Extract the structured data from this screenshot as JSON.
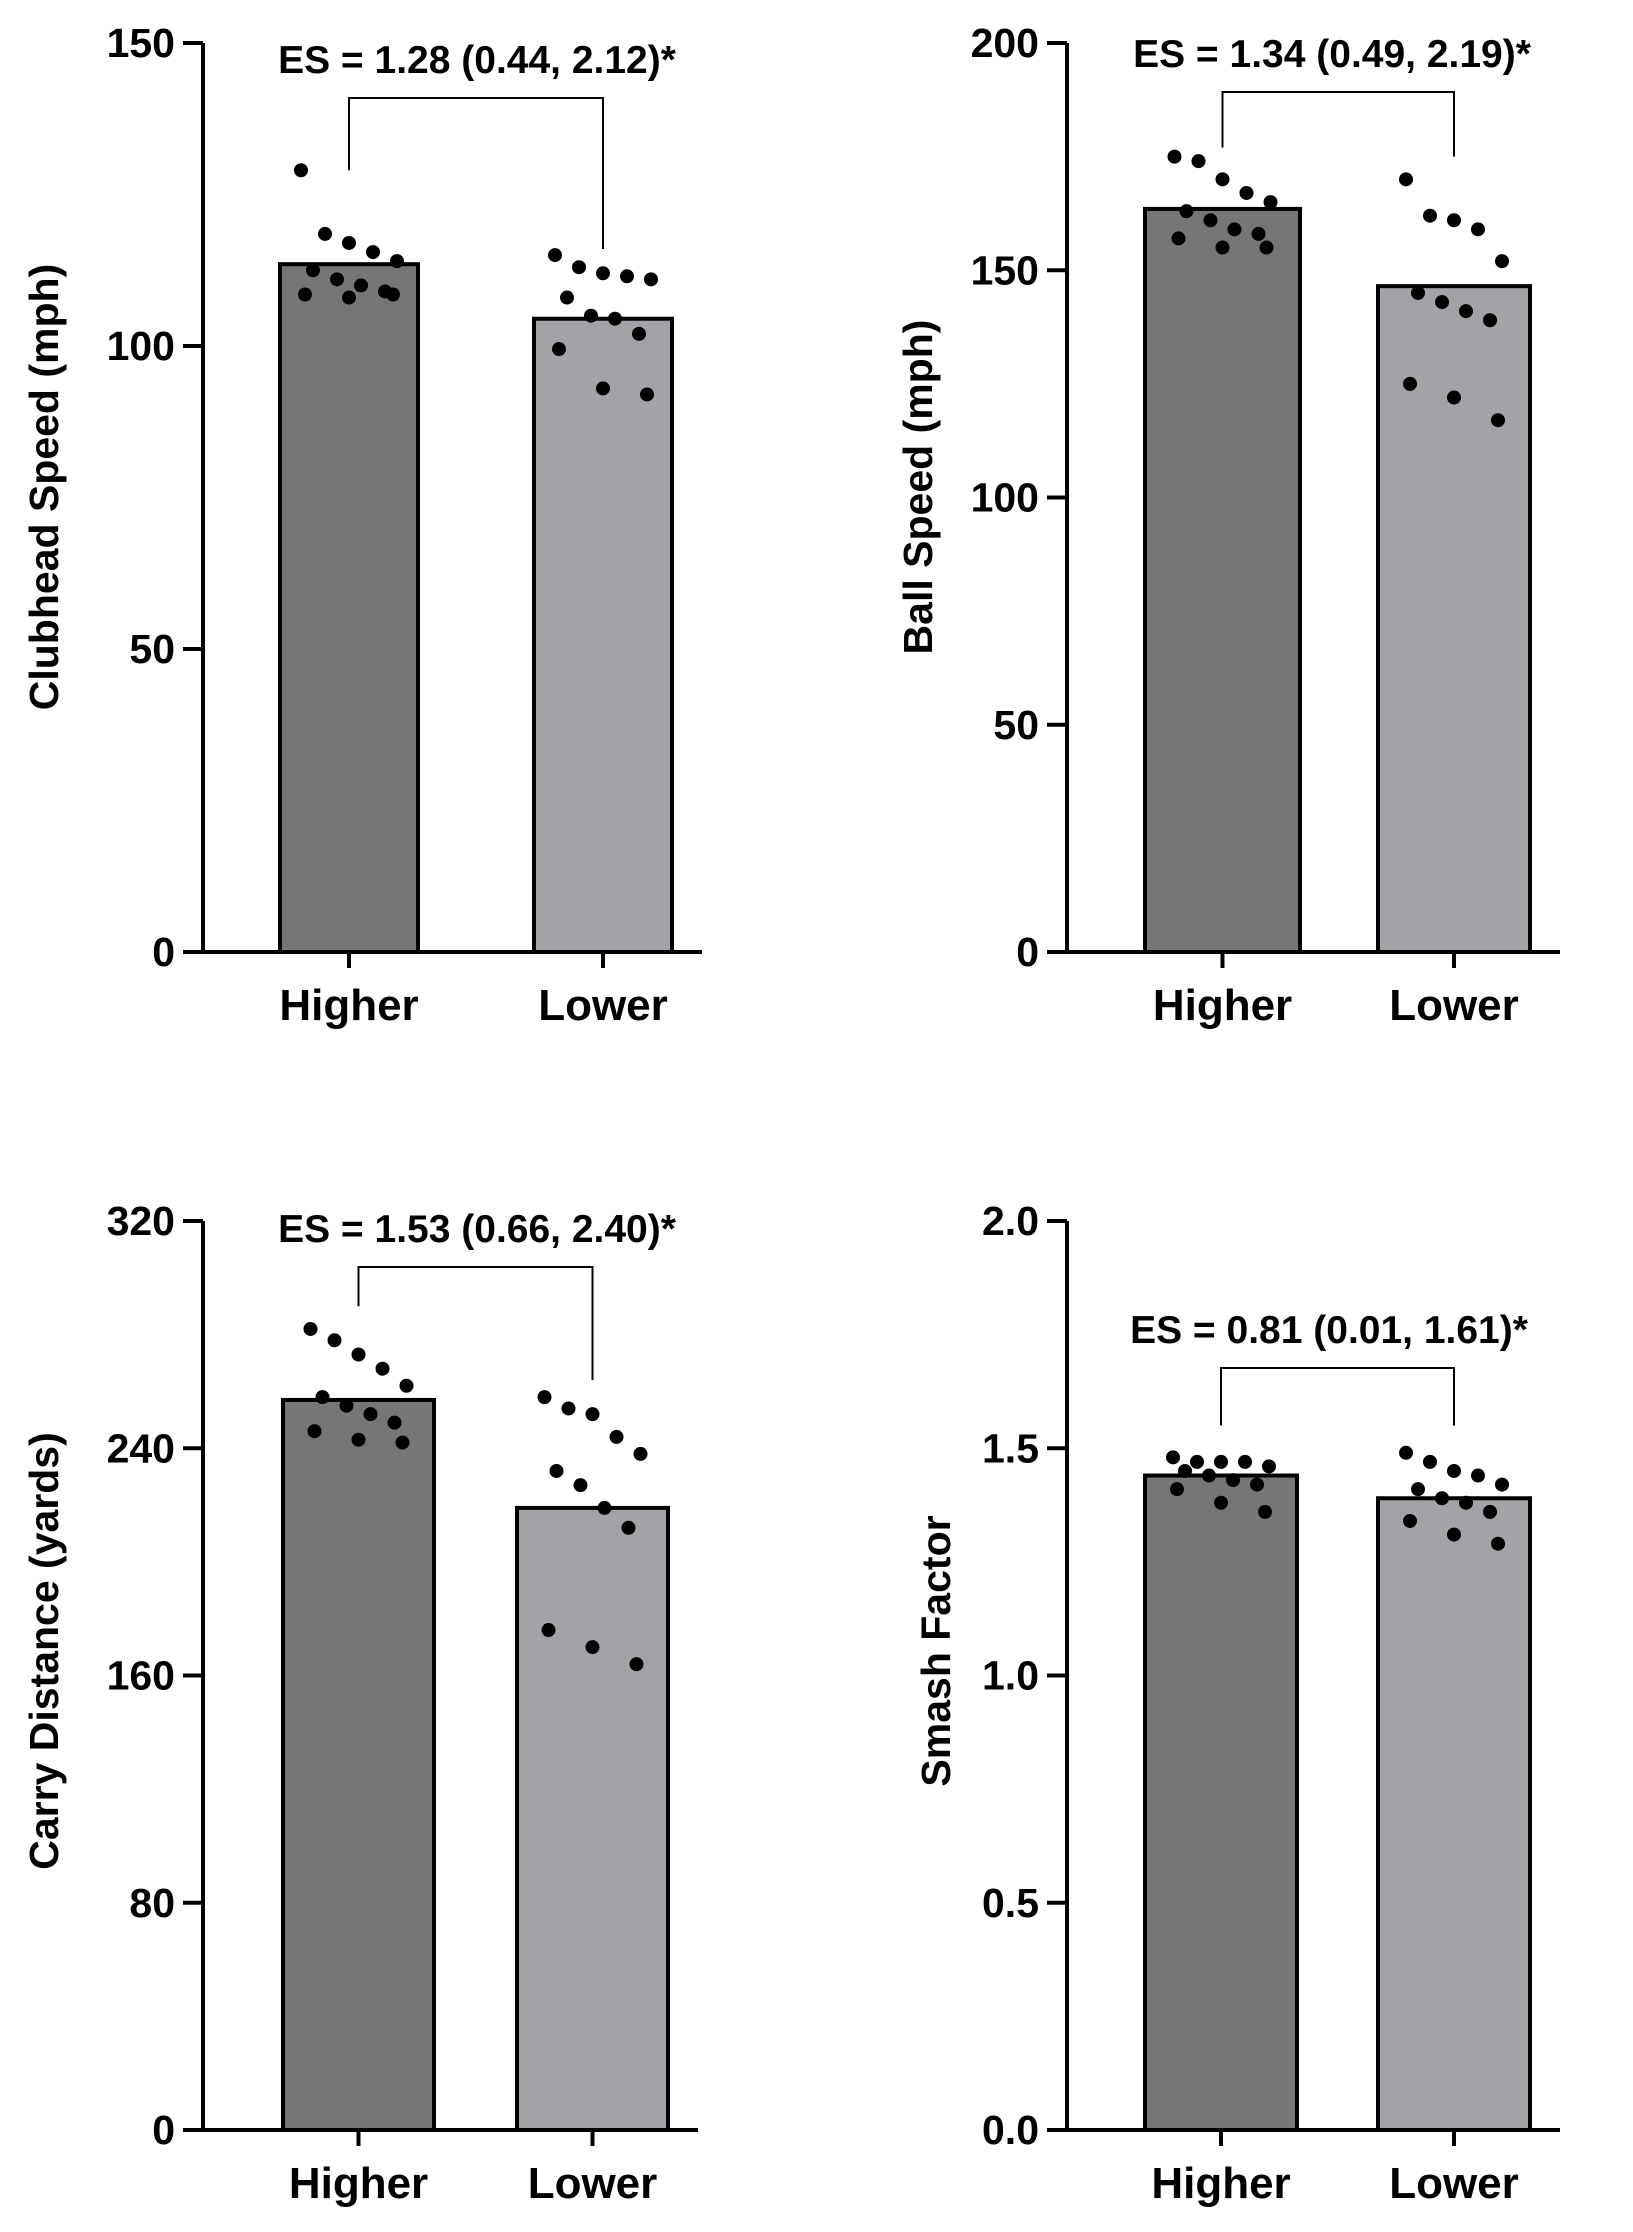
{
  "colors": {
    "higher_bar": "#767676",
    "lower_bar": "#a3a2a7",
    "stroke": "#000000",
    "points": "#000000"
  },
  "chart_data": [
    {
      "type": "bar",
      "id": "clubhead",
      "categories": [
        "Higher",
        "Lower"
      ],
      "values": [
        113.5,
        104.5
      ],
      "points": [
        [
          129,
          118.5,
          117,
          115.5,
          114,
          112.5,
          111,
          110,
          109,
          108.5,
          108,
          108.5
        ],
        [
          115,
          113,
          112,
          111.5,
          111,
          108,
          105,
          104.5,
          102,
          99.5,
          93,
          92
        ]
      ],
      "title": "",
      "xlabel": "",
      "ylabel": "Clubhead Speed (mph)",
      "ylim": [
        0,
        150
      ],
      "yticks": [
        0,
        50,
        100,
        150
      ],
      "ytick_labels": [
        "0",
        "50",
        "100",
        "150"
      ],
      "annotation": "ES = 1.28 (0.44, 2.12)*",
      "bracket_ends": [
        129,
        116
      ]
    },
    {
      "type": "bar",
      "id": "ballspeed",
      "categories": [
        "Higher",
        "Lower"
      ],
      "values": [
        163.5,
        146.5
      ],
      "points": [
        [
          175,
          174,
          170,
          167,
          165,
          163,
          161,
          159,
          158,
          157,
          155,
          155
        ],
        [
          170,
          162,
          161,
          159,
          152,
          145,
          143,
          141,
          139,
          125,
          122,
          117
        ]
      ],
      "title": "",
      "xlabel": "",
      "ylabel": "Ball Speed (mph)",
      "ylim": [
        0,
        200
      ],
      "yticks": [
        0,
        50,
        100,
        150,
        200
      ],
      "ytick_labels": [
        "0",
        "50",
        "100",
        "150",
        "200"
      ],
      "annotation": "ES = 1.34 (0.49, 2.19)*",
      "bracket_ends": [
        177,
        175
      ]
    },
    {
      "type": "bar",
      "id": "carry",
      "categories": [
        "Higher",
        "Lower"
      ],
      "values": [
        257,
        219
      ],
      "points": [
        [
          282,
          278,
          273,
          268,
          262,
          258,
          255,
          252,
          249,
          246,
          243,
          242
        ],
        [
          258,
          254,
          252,
          244,
          238,
          232,
          227,
          219,
          212,
          176,
          170,
          164
        ]
      ],
      "title": "",
      "xlabel": "",
      "ylabel": "Carry Distance (yards)",
      "ylim": [
        0,
        320
      ],
      "yticks": [
        0,
        80,
        160,
        240,
        320
      ],
      "ytick_labels": [
        "0",
        "80",
        "160",
        "240",
        "320"
      ],
      "annotation": "ES = 1.53 (0.66, 2.40)*",
      "bracket_ends": [
        290,
        264
      ]
    },
    {
      "type": "bar",
      "id": "smash",
      "categories": [
        "Higher",
        "Lower"
      ],
      "values": [
        1.44,
        1.39
      ],
      "points": [
        [
          1.48,
          1.47,
          1.47,
          1.47,
          1.46,
          1.45,
          1.44,
          1.43,
          1.42,
          1.41,
          1.38,
          1.36
        ],
        [
          1.49,
          1.47,
          1.45,
          1.44,
          1.42,
          1.41,
          1.39,
          1.38,
          1.36,
          1.34,
          1.31,
          1.29
        ]
      ],
      "title": "",
      "xlabel": "",
      "ylabel": "Smash Factor",
      "ylim": [
        0,
        2.0
      ],
      "yticks": [
        0,
        0.5,
        1.0,
        1.5,
        2.0
      ],
      "ytick_labels": [
        "0.0",
        "0.5",
        "1.0",
        "1.5",
        "2.0"
      ],
      "annotation": "ES = 0.81 (0.01, 1.61)*",
      "bracket_ends": [
        1.55,
        1.55
      ]
    }
  ]
}
